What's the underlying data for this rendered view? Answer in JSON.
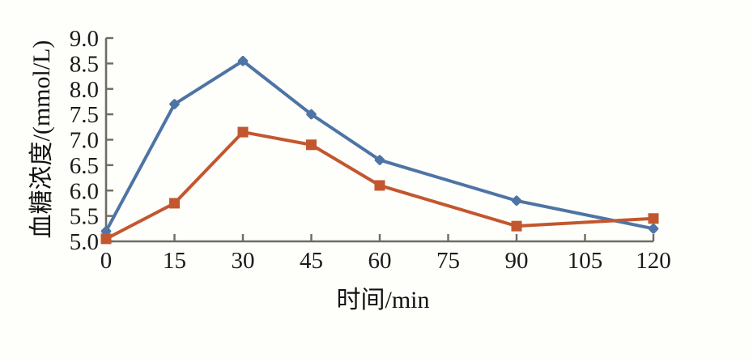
{
  "figure": {
    "background": "#fefefb"
  },
  "chart_data": {
    "type": "line",
    "title": "",
    "xlabel": "时间/min",
    "ylabel": "血糖浓度/(mmol/L)",
    "xlim": [
      0,
      120
    ],
    "ylim": [
      5.0,
      9.0
    ],
    "x_tick_labels": [
      "0",
      "15",
      "30",
      "45",
      "60",
      "75",
      "90",
      "105",
      "120"
    ],
    "y_tick_labels": [
      "5.0",
      "5.5",
      "6.0",
      "6.5",
      "7.0",
      "7.5",
      "8.0",
      "8.5",
      "9.0"
    ],
    "grid": false,
    "legend": "none",
    "axis_color": "#6E6B63",
    "tick_label_color": "#1A1A1A",
    "series": [
      {
        "name": "blue-series",
        "color": "#4E74A5",
        "marker": "diamond",
        "x": [
          0,
          15,
          30,
          45,
          60,
          90,
          120
        ],
        "values": [
          5.2,
          7.7,
          8.55,
          7.5,
          6.6,
          5.8,
          5.25
        ]
      },
      {
        "name": "orange-series",
        "color": "#C2572F",
        "marker": "square",
        "x": [
          0,
          15,
          30,
          45,
          60,
          90,
          120
        ],
        "values": [
          5.05,
          5.75,
          7.15,
          6.9,
          6.1,
          5.3,
          5.45
        ]
      }
    ]
  }
}
